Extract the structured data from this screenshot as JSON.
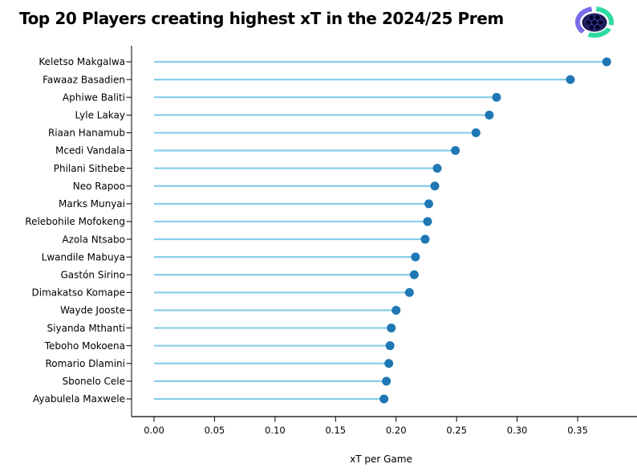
{
  "title": "Top 20 Players creating highest xT in the 2024/25 Prem",
  "logo": {
    "name": "league-club-logo",
    "ring_purple": "#7a6ce8",
    "ring_teal": "#2fd9a4",
    "ball_fill": "#1a1a55",
    "ball_hex_fill": "#05052e",
    "ball_line": "#4040a0"
  },
  "chart_data": {
    "type": "bar",
    "style": "lollipop",
    "orientation": "horizontal",
    "title": "Top 20 Players creating highest xT in the 2024/25 Prem",
    "xlabel": "xT per Game",
    "ylabel": "",
    "grid": false,
    "legend": null,
    "xlim": [
      -0.018,
      0.399
    ],
    "xticks": [
      0.0,
      0.05,
      0.1,
      0.15,
      0.2,
      0.25,
      0.3,
      0.35
    ],
    "xtick_labels": [
      "0.00",
      "0.05",
      "0.10",
      "0.15",
      "0.20",
      "0.25",
      "0.30",
      "0.35"
    ],
    "categories": [
      "Keletso Makgalwa",
      "Fawaaz Basadien",
      "Aphiwe Baliti",
      "Lyle Lakay",
      "Riaan Hanamub",
      "Mcedi Vandala",
      "Philani Sithebe",
      "Neo Rapoo",
      "Marks Munyai",
      "Relebohile Mofokeng",
      "Azola Ntsabo",
      "Lwandile Mabuya",
      "Gastón Sirino",
      "Dimakatso Komape",
      "Wayde Jooste",
      "Siyanda Mthanti",
      "Teboho Mokoena",
      "Romario Dlamini",
      "Sbonelo Cele",
      "Ayabulela Maxwele"
    ],
    "values": [
      0.374,
      0.344,
      0.283,
      0.277,
      0.266,
      0.249,
      0.234,
      0.232,
      0.227,
      0.226,
      0.224,
      0.216,
      0.215,
      0.211,
      0.2,
      0.196,
      0.195,
      0.194,
      0.192,
      0.19
    ],
    "stem_color": "#87ceeb",
    "dot_color": "#1f77b4",
    "axis_color": "#000000"
  }
}
